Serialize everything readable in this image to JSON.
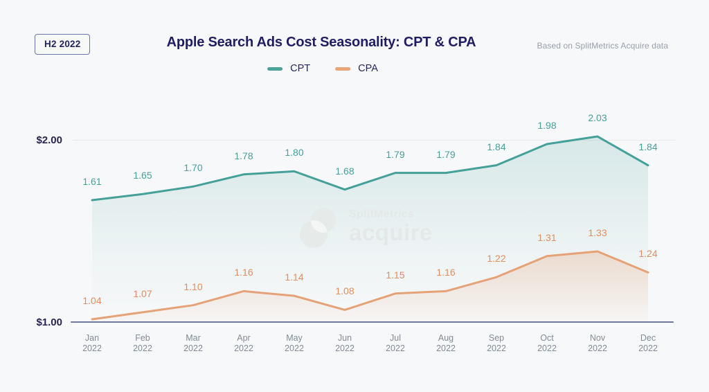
{
  "header": {
    "badge": "H2 2022",
    "title": "Apple Search Ads Cost Seasonality: CPT & CPA",
    "attribution": "Based on SplitMetrics Acquire data"
  },
  "legend": {
    "items": [
      {
        "label": "CPT",
        "color": "#4AA49C"
      },
      {
        "label": "CPA",
        "color": "#E8A678"
      }
    ]
  },
  "watermark": {
    "line1": "SplitMetrics",
    "line2": "acquire"
  },
  "colors": {
    "background": "#F7F8F9",
    "title_navy": "#211D63",
    "axis_line": "#70769A",
    "gridline": "#E8EAEE",
    "month_label_gray": "#828A98"
  },
  "chart_data": {
    "type": "line",
    "categories": [
      "Jan",
      "Feb",
      "Mar",
      "Apr",
      "May",
      "Jun",
      "Jul",
      "Aug",
      "Sep",
      "Oct",
      "Nov",
      "Dec"
    ],
    "year": "2022",
    "series": [
      {
        "name": "CPT",
        "color": "#45A09A",
        "label_color": "#45A09A",
        "values": [
          1.61,
          1.65,
          1.7,
          1.78,
          1.8,
          1.68,
          1.79,
          1.79,
          1.84,
          1.98,
          2.03,
          1.84
        ]
      },
      {
        "name": "CPA",
        "color": "#E6A277",
        "label_color": "#E08E5F",
        "values": [
          1.04,
          1.07,
          1.1,
          1.16,
          1.14,
          1.08,
          1.15,
          1.16,
          1.22,
          1.31,
          1.33,
          1.24
        ]
      }
    ],
    "y_ticks": [
      "$2.00",
      "$1.00"
    ],
    "ylabel": "",
    "xlabel": "",
    "ylim": [
      1.0,
      2.1
    ],
    "grid": "horizontal-at-$2.00-only",
    "legend_position": "top-center"
  }
}
